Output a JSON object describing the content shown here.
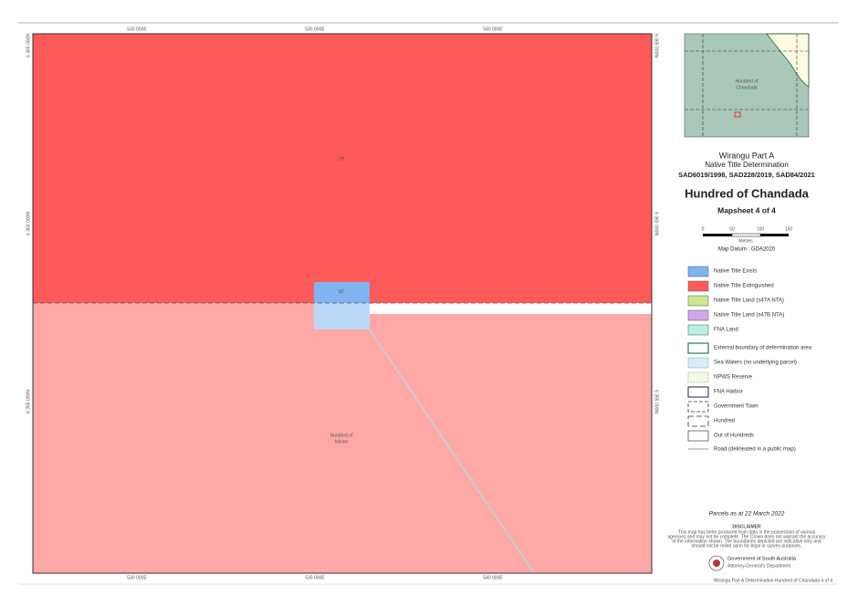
{
  "map": {
    "labels": [
      "2H",
      "NT",
      "Hundred of",
      "Inkster"
    ],
    "top_coords": [
      "530 000E",
      "535 000E",
      "540 000E"
    ],
    "side_coords": [
      "6 365 000N",
      "6 360 000N",
      "6 355 000N"
    ]
  },
  "inset": {
    "label": [
      "Hundred of",
      "Chandada"
    ]
  },
  "title_block": {
    "project": "Wirangu Part A",
    "subtitle": "Native Title Determination",
    "cases": "SAD6019/1998, SAD228/2019, SAD84/2021",
    "title": "Hundred of Chandada",
    "mapsheet": "Mapsheet 4 of 4",
    "scale_ticks": [
      "0",
      "50",
      "100",
      "150"
    ],
    "scale_unit": "Metres",
    "datum": "Map Datum : GDA2020"
  },
  "legend": [
    "Native Title Exists",
    "Native Title Extinguished",
    "Native Title Land (s47A NTA)",
    "Native Title Land (s47B NTA)",
    "FNA Land",
    "External boundary of determination area",
    "Sea Waters (no underlying parcel)",
    "NPWS Reserve",
    "FNA Harbor",
    "Government Town",
    "Hundred",
    "Out of Hundreds",
    "Road (delineated in a public map)"
  ],
  "footer": {
    "parcels": "Parcels as at 22 March 2022",
    "disclaimer_title": "DISCLAIMER",
    "disclaimer": [
      "This map has been produced from data in the possession of various",
      "agencies and may not be complete. The Crown does not warrant the accuracy",
      "of the information shown. The boundaries depicted are indicative only and",
      "should not be relied upon for legal or survey purposes."
    ],
    "agency": "Government of South Australia",
    "department": "Attorney-General's Department",
    "code": "Wirangu Part A Determination Hundred of Chandada 4 of 4"
  }
}
